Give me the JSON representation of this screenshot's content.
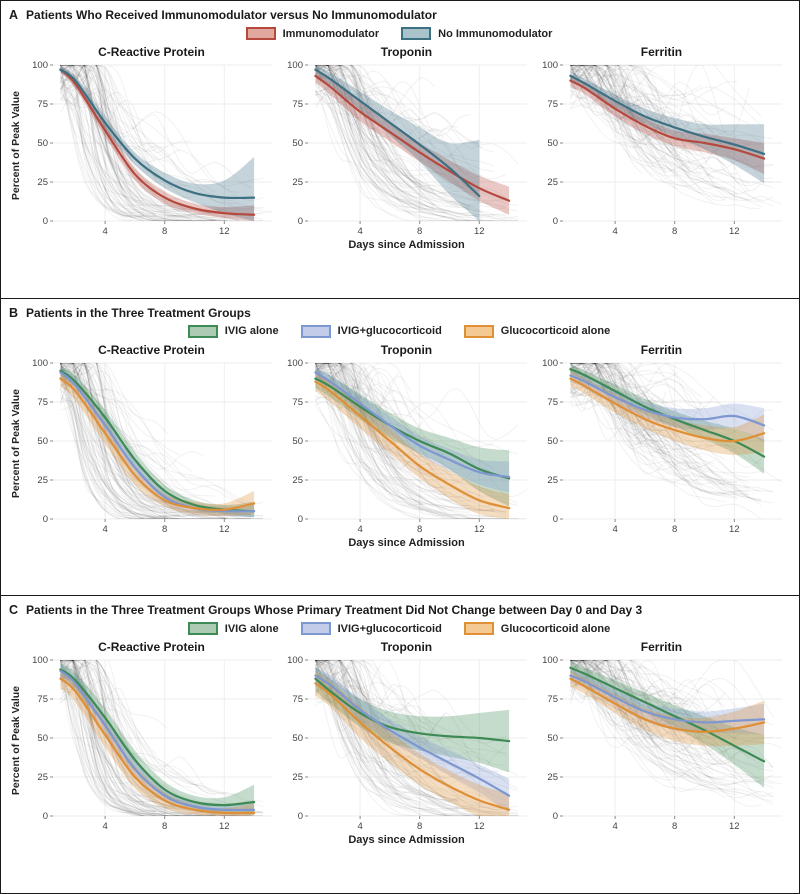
{
  "panels": [
    {
      "letter": "A",
      "title": "Patients Who Received Immunomodulator versus No Immunomodulator",
      "legend": [
        {
          "label": "Immunomodulator",
          "stroke": "#b5493e",
          "fill": "#e0a89f"
        },
        {
          "label": "No Immunomodulator",
          "stroke": "#3e7083",
          "fill": "#a9c3cb"
        }
      ]
    },
    {
      "letter": "B",
      "title": "Patients in the Three Treatment Groups",
      "legend": [
        {
          "label": "IVIG alone",
          "stroke": "#3e8a55",
          "fill": "#abccb3"
        },
        {
          "label": "IVIG+glucocorticoid",
          "stroke": "#7e97d1",
          "fill": "#c3cdea"
        },
        {
          "label": "Glucocorticoid alone",
          "stroke": "#df8f35",
          "fill": "#f2ca92"
        }
      ]
    },
    {
      "letter": "C",
      "title": "Patients in the Three Treatment Groups Whose Primary Treatment Did Not Change between Day 0 and Day 3",
      "legend": [
        {
          "label": "IVIG alone",
          "stroke": "#3e8a55",
          "fill": "#abccb3"
        },
        {
          "label": "IVIG+glucocorticoid",
          "stroke": "#7e97d1",
          "fill": "#c3cdea"
        },
        {
          "label": "Glucocorticoid alone",
          "stroke": "#df8f35",
          "fill": "#f2ca92"
        }
      ]
    }
  ],
  "chart_data": [
    {
      "type": "line",
      "panel": "A",
      "title": "C-Reactive Protein",
      "xlabel": "Days since Admission",
      "ylabel": "Percent of Peak Value",
      "xlim": [
        0.5,
        15.2
      ],
      "ylim": [
        0,
        100
      ],
      "xticks": [
        4,
        8,
        12
      ],
      "yticks": [
        0,
        25,
        50,
        75,
        100
      ],
      "x": [
        1,
        2,
        4,
        6,
        8,
        10,
        12,
        14
      ],
      "series": [
        {
          "name": "Immunomodulator",
          "color": "#b5493e",
          "y": [
            97,
            88,
            58,
            30,
            15,
            8,
            5,
            4
          ],
          "lo": [
            95,
            85,
            54,
            26,
            11,
            5,
            2,
            0
          ],
          "hi": [
            99,
            91,
            62,
            34,
            19,
            11,
            9,
            10
          ]
        },
        {
          "name": "No Immunomodulator",
          "color": "#3e7083",
          "y": [
            97,
            90,
            63,
            40,
            26,
            18,
            15,
            15
          ],
          "lo": [
            95,
            87,
            59,
            36,
            21,
            12,
            5,
            0
          ],
          "hi": [
            99,
            93,
            67,
            44,
            31,
            24,
            26,
            41
          ]
        }
      ]
    },
    {
      "type": "line",
      "panel": "A",
      "title": "Troponin",
      "xlabel": "Days since Admission",
      "ylabel": "Percent of Peak Value",
      "xlim": [
        0.5,
        15.2
      ],
      "ylim": [
        0,
        100
      ],
      "xticks": [
        4,
        8,
        12
      ],
      "yticks": [
        0,
        25,
        50,
        75,
        100
      ],
      "x": [
        1,
        2,
        4,
        6,
        8,
        10,
        12,
        14
      ],
      "series": [
        {
          "name": "Immunomodulator",
          "color": "#b5493e",
          "y": [
            93,
            86,
            70,
            57,
            44,
            32,
            21,
            13
          ],
          "lo": [
            89,
            81,
            64,
            51,
            38,
            25,
            13,
            4
          ],
          "hi": [
            97,
            91,
            76,
            63,
            50,
            39,
            29,
            22
          ]
        },
        {
          "name": "No Immunomodulator",
          "color": "#3e7083",
          "x": [
            1,
            2,
            4,
            6,
            8,
            10,
            12
          ],
          "y": [
            97,
            91,
            77,
            63,
            49,
            34,
            16
          ],
          "lo": [
            93,
            87,
            71,
            55,
            38,
            17,
            0
          ],
          "hi": [
            100,
            95,
            83,
            71,
            60,
            50,
            52
          ]
        }
      ]
    },
    {
      "type": "line",
      "panel": "A",
      "title": "Ferritin",
      "xlabel": "Days since Admission",
      "ylabel": "Percent of Peak Value",
      "xlim": [
        0.5,
        15.2
      ],
      "ylim": [
        0,
        100
      ],
      "xticks": [
        4,
        8,
        12
      ],
      "yticks": [
        0,
        25,
        50,
        75,
        100
      ],
      "x": [
        1,
        2,
        4,
        6,
        8,
        10,
        12,
        14
      ],
      "series": [
        {
          "name": "Immunomodulator",
          "color": "#b5493e",
          "y": [
            90,
            85,
            72,
            61,
            53,
            50,
            46,
            40
          ],
          "lo": [
            86,
            81,
            67,
            56,
            48,
            44,
            39,
            30
          ],
          "hi": [
            94,
            89,
            77,
            66,
            58,
            56,
            53,
            50
          ]
        },
        {
          "name": "No Immunomodulator",
          "color": "#3e7083",
          "y": [
            93,
            88,
            77,
            67,
            60,
            54,
            49,
            43
          ],
          "lo": [
            90,
            85,
            73,
            62,
            54,
            46,
            36,
            24
          ],
          "hi": [
            96,
            91,
            81,
            72,
            66,
            62,
            62,
            62
          ]
        }
      ]
    },
    {
      "type": "line",
      "panel": "B",
      "title": "C-Reactive Protein",
      "xlabel": "Days since Admission",
      "ylabel": "Percent of Peak Value",
      "xlim": [
        0.5,
        15.2
      ],
      "ylim": [
        0,
        100
      ],
      "xticks": [
        4,
        8,
        12
      ],
      "yticks": [
        0,
        25,
        50,
        75,
        100
      ],
      "x": [
        1,
        2,
        4,
        6,
        8,
        10,
        12,
        14
      ],
      "series": [
        {
          "name": "IVIG alone",
          "color": "#3e8a55",
          "y": [
            95,
            88,
            65,
            38,
            18,
            9,
            6,
            5
          ],
          "lo": [
            92,
            84,
            60,
            33,
            14,
            6,
            3,
            1
          ],
          "hi": [
            98,
            92,
            70,
            43,
            22,
            12,
            9,
            11
          ]
        },
        {
          "name": "IVIG+glucocorticoid",
          "color": "#7e97d1",
          "y": [
            94,
            86,
            60,
            33,
            14,
            7,
            5,
            5
          ],
          "lo": [
            91,
            82,
            55,
            28,
            10,
            4,
            2,
            1
          ],
          "hi": [
            97,
            90,
            65,
            38,
            18,
            10,
            8,
            9
          ]
        },
        {
          "name": "Glucocorticoid alone",
          "color": "#df8f35",
          "y": [
            90,
            82,
            55,
            28,
            12,
            7,
            6,
            10
          ],
          "lo": [
            85,
            76,
            48,
            22,
            8,
            3,
            2,
            3
          ],
          "hi": [
            95,
            88,
            62,
            34,
            16,
            11,
            10,
            18
          ]
        }
      ]
    },
    {
      "type": "line",
      "panel": "B",
      "title": "Troponin",
      "xlabel": "Days since Admission",
      "ylabel": "Percent of Peak Value",
      "xlim": [
        0.5,
        15.2
      ],
      "ylim": [
        0,
        100
      ],
      "xticks": [
        4,
        8,
        12
      ],
      "yticks": [
        0,
        25,
        50,
        75,
        100
      ],
      "x": [
        1,
        2,
        4,
        6,
        8,
        10,
        12,
        14
      ],
      "series": [
        {
          "name": "IVIG alone",
          "color": "#3e8a55",
          "y": [
            90,
            85,
            72,
            60,
            50,
            42,
            32,
            26
          ],
          "lo": [
            84,
            78,
            64,
            52,
            42,
            32,
            18,
            8
          ],
          "hi": [
            96,
            92,
            80,
            68,
            58,
            52,
            46,
            44
          ]
        },
        {
          "name": "IVIG+glucocorticoid",
          "color": "#7e97d1",
          "y": [
            94,
            88,
            74,
            60,
            47,
            38,
            30,
            27
          ],
          "lo": [
            90,
            84,
            69,
            54,
            41,
            31,
            22,
            17
          ],
          "hi": [
            98,
            92,
            79,
            66,
            53,
            45,
            38,
            37
          ]
        },
        {
          "name": "Glucocorticoid alone",
          "color": "#df8f35",
          "y": [
            88,
            82,
            66,
            50,
            34,
            22,
            12,
            7
          ],
          "lo": [
            82,
            75,
            58,
            42,
            26,
            13,
            3,
            0
          ],
          "hi": [
            94,
            89,
            74,
            58,
            42,
            31,
            21,
            16
          ]
        }
      ]
    },
    {
      "type": "line",
      "panel": "B",
      "title": "Ferritin",
      "xlabel": "Days since Admission",
      "ylabel": "Percent of Peak Value",
      "xlim": [
        0.5,
        15.2
      ],
      "ylim": [
        0,
        100
      ],
      "xticks": [
        4,
        8,
        12
      ],
      "yticks": [
        0,
        25,
        50,
        75,
        100
      ],
      "x": [
        1,
        2,
        4,
        6,
        8,
        10,
        12,
        14
      ],
      "series": [
        {
          "name": "IVIG alone",
          "color": "#3e8a55",
          "y": [
            96,
            92,
            82,
            72,
            64,
            57,
            50,
            40
          ],
          "lo": [
            93,
            89,
            78,
            67,
            59,
            51,
            42,
            29
          ],
          "hi": [
            99,
            95,
            86,
            77,
            69,
            63,
            58,
            51
          ]
        },
        {
          "name": "IVIG+glucocorticoid",
          "color": "#7e97d1",
          "y": [
            92,
            88,
            78,
            70,
            65,
            64,
            66,
            60
          ],
          "lo": [
            88,
            84,
            73,
            65,
            59,
            57,
            58,
            49
          ],
          "hi": [
            96,
            92,
            83,
            75,
            71,
            71,
            74,
            71
          ]
        },
        {
          "name": "Glucocorticoid alone",
          "color": "#df8f35",
          "y": [
            90,
            85,
            74,
            64,
            57,
            52,
            50,
            55
          ],
          "lo": [
            85,
            80,
            68,
            58,
            50,
            44,
            41,
            43
          ],
          "hi": [
            95,
            90,
            80,
            70,
            64,
            60,
            59,
            67
          ]
        }
      ]
    },
    {
      "type": "line",
      "panel": "C",
      "title": "C-Reactive Protein",
      "xlabel": "Days since Admission",
      "ylabel": "Percent of Peak Value",
      "xlim": [
        0.5,
        15.2
      ],
      "ylim": [
        0,
        100
      ],
      "xticks": [
        4,
        8,
        12
      ],
      "yticks": [
        0,
        25,
        50,
        75,
        100
      ],
      "x": [
        1,
        2,
        4,
        6,
        8,
        10,
        12,
        14
      ],
      "series": [
        {
          "name": "IVIG alone",
          "color": "#3e8a55",
          "y": [
            94,
            87,
            63,
            36,
            17,
            9,
            7,
            9
          ],
          "lo": [
            90,
            82,
            57,
            30,
            12,
            5,
            2,
            1
          ],
          "hi": [
            98,
            92,
            69,
            42,
            22,
            13,
            12,
            20
          ]
        },
        {
          "name": "IVIG+glucocorticoid",
          "color": "#7e97d1",
          "y": [
            93,
            85,
            58,
            30,
            13,
            6,
            4,
            4
          ],
          "lo": [
            89,
            80,
            52,
            24,
            9,
            3,
            1,
            0
          ],
          "hi": [
            97,
            90,
            64,
            36,
            17,
            9,
            7,
            9
          ]
        },
        {
          "name": "Glucocorticoid alone",
          "color": "#df8f35",
          "y": [
            88,
            80,
            52,
            25,
            10,
            4,
            2,
            2
          ],
          "lo": [
            82,
            73,
            44,
            18,
            5,
            1,
            0,
            0
          ],
          "hi": [
            94,
            87,
            60,
            32,
            15,
            7,
            5,
            8
          ]
        }
      ]
    },
    {
      "type": "line",
      "panel": "C",
      "title": "Troponin",
      "xlabel": "Days since Admission",
      "ylabel": "Percent of Peak Value",
      "xlim": [
        0.5,
        15.2
      ],
      "ylim": [
        0,
        100
      ],
      "xticks": [
        4,
        8,
        12
      ],
      "yticks": [
        0,
        25,
        50,
        75,
        100
      ],
      "x": [
        1,
        2,
        4,
        6,
        8,
        10,
        12,
        14
      ],
      "series": [
        {
          "name": "IVIG alone",
          "color": "#3e8a55",
          "y": [
            88,
            80,
            66,
            57,
            53,
            51,
            50,
            48
          ],
          "lo": [
            80,
            72,
            57,
            47,
            42,
            38,
            34,
            28
          ],
          "hi": [
            96,
            88,
            75,
            67,
            64,
            64,
            66,
            68
          ]
        },
        {
          "name": "IVIG+glucocorticoid",
          "color": "#7e97d1",
          "y": [
            90,
            84,
            68,
            55,
            44,
            34,
            24,
            13
          ],
          "lo": [
            85,
            78,
            61,
            48,
            37,
            26,
            15,
            2
          ],
          "hi": [
            95,
            90,
            75,
            62,
            51,
            42,
            33,
            24
          ]
        },
        {
          "name": "Glucocorticoid alone",
          "color": "#df8f35",
          "y": [
            85,
            78,
            60,
            44,
            30,
            19,
            10,
            4
          ],
          "lo": [
            77,
            70,
            50,
            34,
            20,
            9,
            0,
            0
          ],
          "hi": [
            93,
            86,
            70,
            54,
            40,
            29,
            20,
            14
          ]
        }
      ]
    },
    {
      "type": "line",
      "panel": "C",
      "title": "Ferritin",
      "xlabel": "Days since Admission",
      "ylabel": "Percent of Peak Value",
      "xlim": [
        0.5,
        15.2
      ],
      "ylim": [
        0,
        100
      ],
      "xticks": [
        4,
        8,
        12
      ],
      "yticks": [
        0,
        25,
        50,
        75,
        100
      ],
      "x": [
        1,
        2,
        4,
        6,
        8,
        10,
        12,
        14
      ],
      "series": [
        {
          "name": "IVIG alone",
          "color": "#3e8a55",
          "y": [
            95,
            91,
            82,
            73,
            64,
            55,
            45,
            35
          ],
          "lo": [
            91,
            87,
            77,
            67,
            57,
            46,
            33,
            18
          ],
          "hi": [
            99,
            95,
            87,
            79,
            71,
            64,
            57,
            52
          ]
        },
        {
          "name": "IVIG+glucocorticoid",
          "color": "#7e97d1",
          "y": [
            90,
            86,
            76,
            67,
            62,
            60,
            61,
            62
          ],
          "lo": [
            86,
            82,
            71,
            61,
            55,
            53,
            53,
            52
          ],
          "hi": [
            94,
            90,
            81,
            73,
            69,
            67,
            69,
            72
          ]
        },
        {
          "name": "Glucocorticoid alone",
          "color": "#df8f35",
          "y": [
            88,
            83,
            72,
            62,
            56,
            54,
            56,
            60
          ],
          "lo": [
            83,
            78,
            66,
            55,
            48,
            45,
            45,
            46
          ],
          "hi": [
            93,
            88,
            78,
            69,
            64,
            63,
            67,
            74
          ]
        }
      ]
    }
  ]
}
